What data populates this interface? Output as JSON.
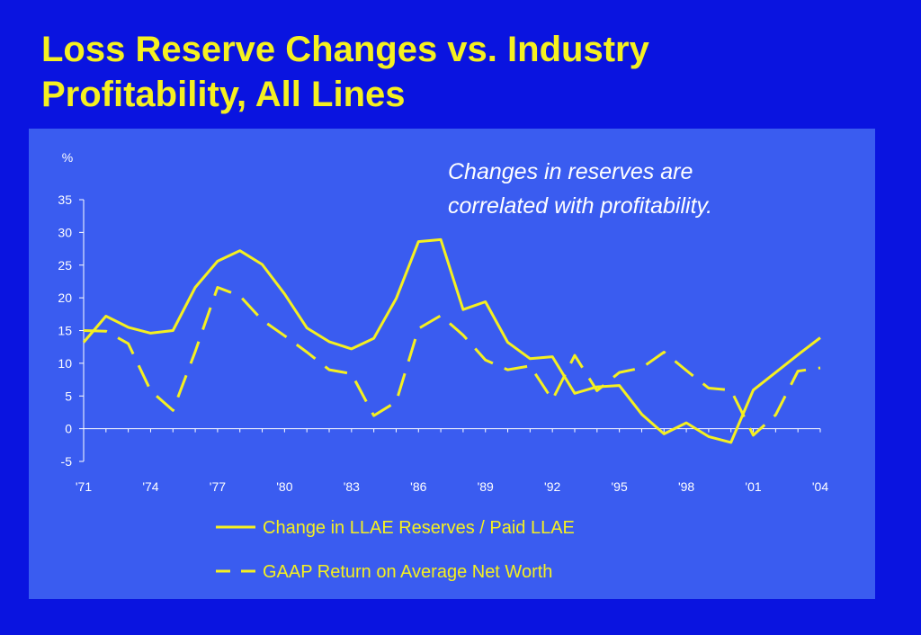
{
  "slide": {
    "title_line1": "Loss Reserve Changes vs. Industry",
    "title_line2": "Profitability, All Lines",
    "annotation_line1": "Changes in reserves are",
    "annotation_line2": "correlated with profitability."
  },
  "colors": {
    "background": "#0a14e0",
    "panel": "#3a5cf0",
    "title": "#f5f020",
    "series": "#f5f020",
    "text": "#ffffff"
  },
  "chart_data": {
    "type": "line",
    "ylabel": "%",
    "ylim": [
      -5,
      35
    ],
    "yticks": [
      35,
      30,
      25,
      20,
      15,
      10,
      5,
      0,
      -5
    ],
    "xlim": [
      1971,
      2004
    ],
    "xticks": [
      1971,
      1974,
      1977,
      1980,
      1983,
      1986,
      1989,
      1992,
      1995,
      1998,
      2001,
      2004
    ],
    "xtick_labels": [
      "'71",
      "'74",
      "'77",
      "'80",
      "'83",
      "'86",
      "'89",
      "'92",
      "'95",
      "'98",
      "'01",
      "'04"
    ],
    "legend_position": "bottom",
    "grid": false,
    "x": [
      1971,
      1972,
      1973,
      1974,
      1975,
      1976,
      1977,
      1978,
      1979,
      1980,
      1981,
      1982,
      1983,
      1984,
      1985,
      1986,
      1987,
      1988,
      1989,
      1990,
      1991,
      1992,
      1993,
      1994,
      1995,
      1996,
      1997,
      1998,
      1999,
      2000,
      2001,
      2002,
      2003,
      2004
    ],
    "series": [
      {
        "name": "Change in LLAE Reserves / Paid LLAE",
        "style": "solid",
        "values": [
          13.2,
          17.2,
          15.5,
          14.6,
          15.0,
          21.6,
          25.6,
          27.2,
          25.1,
          20.6,
          15.4,
          13.3,
          12.2,
          13.8,
          19.9,
          28.6,
          28.9,
          18.2,
          19.4,
          13.2,
          10.7,
          11.0,
          5.4,
          6.4,
          6.6,
          2.2,
          -0.8,
          0.9,
          -1.2,
          -2.1,
          5.9,
          8.6,
          11.3,
          13.9
        ]
      },
      {
        "name": "GAAP Return on Average Net Worth",
        "style": "dashed",
        "values": [
          15.0,
          14.9,
          13.0,
          5.8,
          2.8,
          11.8,
          21.6,
          20.3,
          16.6,
          14.2,
          11.7,
          9.0,
          8.4,
          2.0,
          4.1,
          15.3,
          17.3,
          14.3,
          10.5,
          9.0,
          9.6,
          4.4,
          11.2,
          5.8,
          8.6,
          9.3,
          11.7,
          8.9,
          6.2,
          5.9,
          -1.0,
          2.1,
          8.8,
          9.3
        ]
      }
    ]
  }
}
